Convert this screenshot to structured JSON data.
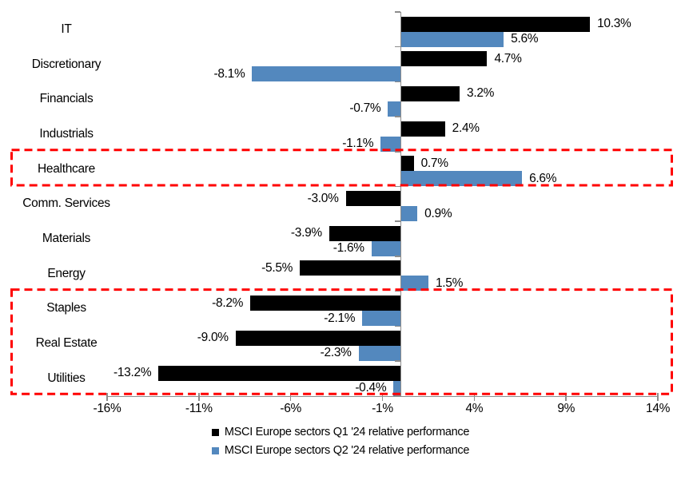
{
  "chart_data": {
    "type": "bar",
    "orientation": "horizontal",
    "title": "",
    "categories": [
      "IT",
      "Discretionary",
      "Financials",
      "Industrials",
      "Healthcare",
      "Comm. Services",
      "Materials",
      "Energy",
      "Staples",
      "Real Estate",
      "Utilities"
    ],
    "series": [
      {
        "name": "MSCI Europe sectors Q1 '24 relative performance",
        "color": "#000000",
        "values": [
          10.3,
          4.7,
          3.2,
          2.4,
          0.7,
          -3.0,
          -3.9,
          -5.5,
          -8.2,
          -9.0,
          -13.2
        ],
        "labels": [
          "10.3%",
          "4.7%",
          "3.2%",
          "2.4%",
          "0.7%",
          "-3.0%",
          "-3.9%",
          "-5.5%",
          "-8.2%",
          "-9.0%",
          "-13.2%"
        ]
      },
      {
        "name": "MSCI Europe sectors Q2 '24 relative performance",
        "color": "#5388BE",
        "values": [
          5.6,
          -8.1,
          -0.7,
          -1.1,
          6.6,
          0.9,
          -1.6,
          1.5,
          -2.1,
          -2.3,
          -0.4
        ],
        "labels": [
          "5.6%",
          "-8.1%",
          "-0.7%",
          "-1.1%",
          "6.6%",
          "0.9%",
          "-1.6%",
          "1.5%",
          "-2.1%",
          "-2.3%",
          "-0.4%"
        ]
      }
    ],
    "x_axis": {
      "min": -16,
      "max": 14,
      "tick_step": 5,
      "ticks": [
        {
          "value": -16,
          "label": "-16%"
        },
        {
          "value": -11,
          "label": "-11%"
        },
        {
          "value": -6,
          "label": "-6%"
        },
        {
          "value": -1,
          "label": "-1%"
        },
        {
          "value": 4,
          "label": "4%"
        },
        {
          "value": 9,
          "label": "9%"
        },
        {
          "value": 14,
          "label": "14%"
        }
      ]
    },
    "grid": false,
    "axis_color": "#8c8c8c",
    "legend_position": "bottom",
    "annotations": {
      "highlight_boxes": [
        {
          "categories": [
            "Healthcare"
          ],
          "color": "#FF0000",
          "style": "dashed"
        },
        {
          "categories": [
            "Staples",
            "Real Estate",
            "Utilities"
          ],
          "color": "#FF0000",
          "style": "dashed"
        }
      ]
    }
  }
}
